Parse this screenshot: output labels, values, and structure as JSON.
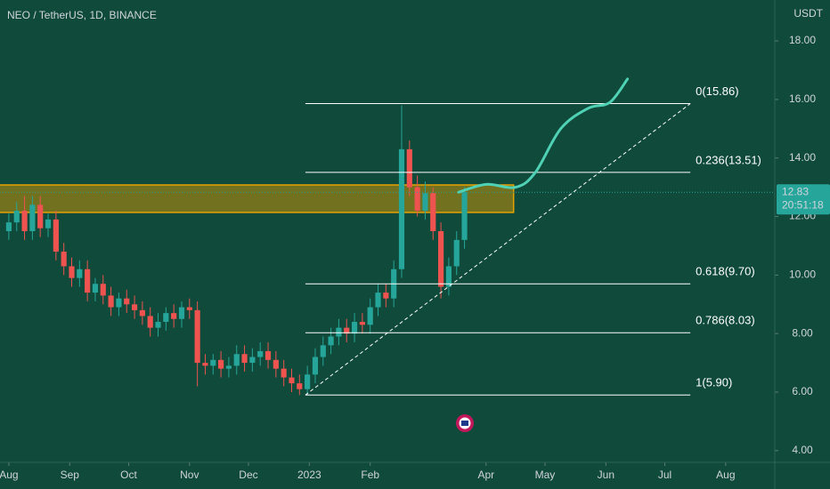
{
  "chart_data": {
    "type": "candlestick",
    "title": "NEO / TetherUS, 1D, BINANCE",
    "y_unit": "USDT",
    "up_color": "#26a69a",
    "down_color": "#ef5350",
    "xlim": [
      -4.5,
      390
    ],
    "ylim": [
      3.6,
      19.4
    ],
    "yticks": [
      {
        "value": 4,
        "label": "4.00"
      },
      {
        "value": 6,
        "label": "6.00"
      },
      {
        "value": 8,
        "label": "8.00"
      },
      {
        "value": 10,
        "label": "10.00"
      },
      {
        "value": 12,
        "label": "12.00"
      },
      {
        "value": 14,
        "label": "14.00"
      },
      {
        "value": 16,
        "label": "16.00"
      },
      {
        "value": 18,
        "label": "18.00"
      }
    ],
    "xticks": [
      {
        "value": 0,
        "label": "Aug"
      },
      {
        "value": 31,
        "label": "Sep"
      },
      {
        "value": 61,
        "label": "Oct"
      },
      {
        "value": 92,
        "label": "Nov"
      },
      {
        "value": 122,
        "label": "Dec"
      },
      {
        "value": 153,
        "label": "2023"
      },
      {
        "value": 184,
        "label": "Feb"
      },
      {
        "value": 243,
        "label": "Apr"
      },
      {
        "value": 273,
        "label": "May"
      },
      {
        "value": 304,
        "label": "Jun"
      },
      {
        "value": 334,
        "label": "Jul"
      },
      {
        "value": 365,
        "label": "Aug"
      }
    ],
    "x": [
      0,
      4,
      8,
      12,
      16,
      20,
      24,
      28,
      32,
      36,
      40,
      44,
      48,
      52,
      56,
      60,
      64,
      68,
      72,
      76,
      80,
      84,
      88,
      92,
      96,
      100,
      104,
      108,
      112,
      116,
      120,
      124,
      128,
      132,
      136,
      140,
      144,
      148,
      152,
      156,
      160,
      164,
      168,
      172,
      176,
      180,
      184,
      188,
      192,
      196,
      200,
      204,
      208,
      212,
      216,
      220,
      224,
      228,
      232
    ],
    "open": [
      11.5,
      11.8,
      12.2,
      11.5,
      12.4,
      11.6,
      11.9,
      10.8,
      10.3,
      9.9,
      10.2,
      9.4,
      9.7,
      9.3,
      8.9,
      9.2,
      9.0,
      8.8,
      8.6,
      8.2,
      8.4,
      8.7,
      8.5,
      8.9,
      8.8,
      7.0,
      6.9,
      7.1,
      6.8,
      6.9,
      7.3,
      7.0,
      7.2,
      7.4,
      7.1,
      6.8,
      6.5,
      6.3,
      6.1,
      6.6,
      7.2,
      7.6,
      7.9,
      8.2,
      8.0,
      8.4,
      8.3,
      8.9,
      9.4,
      9.2,
      10.2,
      14.3,
      13.0,
      12.2,
      12.8,
      11.5,
      9.6,
      10.3,
      11.2
    ],
    "high": [
      12.1,
      12.5,
      12.7,
      12.7,
      12.7,
      12.1,
      12.2,
      11.1,
      10.6,
      10.5,
      10.5,
      9.9,
      10.0,
      9.6,
      9.4,
      9.5,
      9.3,
      9.1,
      8.9,
      8.7,
      8.9,
      9.0,
      9.1,
      9.2,
      9.1,
      7.3,
      7.3,
      7.4,
      7.2,
      7.6,
      7.6,
      7.5,
      7.7,
      7.7,
      7.4,
      7.1,
      6.8,
      6.6,
      6.9,
      7.5,
      7.9,
      8.2,
      8.5,
      8.5,
      8.7,
      8.7,
      9.2,
      9.7,
      9.7,
      10.5,
      15.8,
      14.6,
      13.4,
      13.2,
      13.0,
      11.8,
      10.6,
      11.5,
      13.0
    ],
    "low": [
      11.2,
      11.5,
      11.2,
      11.2,
      11.3,
      11.3,
      10.5,
      10.0,
      9.6,
      9.6,
      9.1,
      9.1,
      9.0,
      8.6,
      8.6,
      8.7,
      8.5,
      8.3,
      7.9,
      7.9,
      8.1,
      8.2,
      8.2,
      8.5,
      6.2,
      6.6,
      6.6,
      6.5,
      6.5,
      6.6,
      6.7,
      6.7,
      6.9,
      6.8,
      6.5,
      6.2,
      6.0,
      5.9,
      5.9,
      6.3,
      6.9,
      7.3,
      7.6,
      7.7,
      7.7,
      8.0,
      8.0,
      8.6,
      8.9,
      8.9,
      9.9,
      12.7,
      12.0,
      11.9,
      11.2,
      9.2,
      9.3,
      10.0,
      10.9
    ],
    "close": [
      11.8,
      12.2,
      11.5,
      12.4,
      11.6,
      11.9,
      10.8,
      10.3,
      9.9,
      10.2,
      9.4,
      9.7,
      9.3,
      8.9,
      9.2,
      9.0,
      8.8,
      8.6,
      8.2,
      8.4,
      8.7,
      8.5,
      8.9,
      8.8,
      7.0,
      6.9,
      7.1,
      6.8,
      6.9,
      7.3,
      7.0,
      7.2,
      7.4,
      7.1,
      6.8,
      6.5,
      6.3,
      6.1,
      6.6,
      7.2,
      7.6,
      7.9,
      8.2,
      8.0,
      8.4,
      8.3,
      8.9,
      9.4,
      9.2,
      10.2,
      14.3,
      13.0,
      12.2,
      12.8,
      11.5,
      9.6,
      10.3,
      11.2,
      12.83
    ],
    "last_price": {
      "value": 12.83,
      "label": "12.83"
    },
    "countdown": "20:51:18",
    "zone": {
      "x": [
        -5,
        257
      ],
      "y": [
        12.14,
        13.08
      ],
      "color": "#e8a200"
    },
    "fib_x": [
      151,
      347
    ],
    "fib_levels": [
      {
        "label": "0(15.86)",
        "value": 15.86
      },
      {
        "label": "0.236(13.51)",
        "value": 13.51
      },
      {
        "label": "0.618(9.70)",
        "value": 9.7
      },
      {
        "label": "0.786(8.03)",
        "value": 8.03
      },
      {
        "label": "1(5.90)",
        "value": 5.9
      }
    ],
    "trend_line": {
      "x": [
        151,
        347
      ],
      "y": [
        5.9,
        15.86
      ]
    },
    "projection": {
      "color": "#4fd1b5",
      "x": [
        229,
        243,
        258,
        268,
        281,
        295,
        306,
        315
      ],
      "y": [
        12.83,
        13.1,
        13.0,
        13.5,
        15.0,
        15.7,
        15.9,
        16.7
      ]
    }
  }
}
